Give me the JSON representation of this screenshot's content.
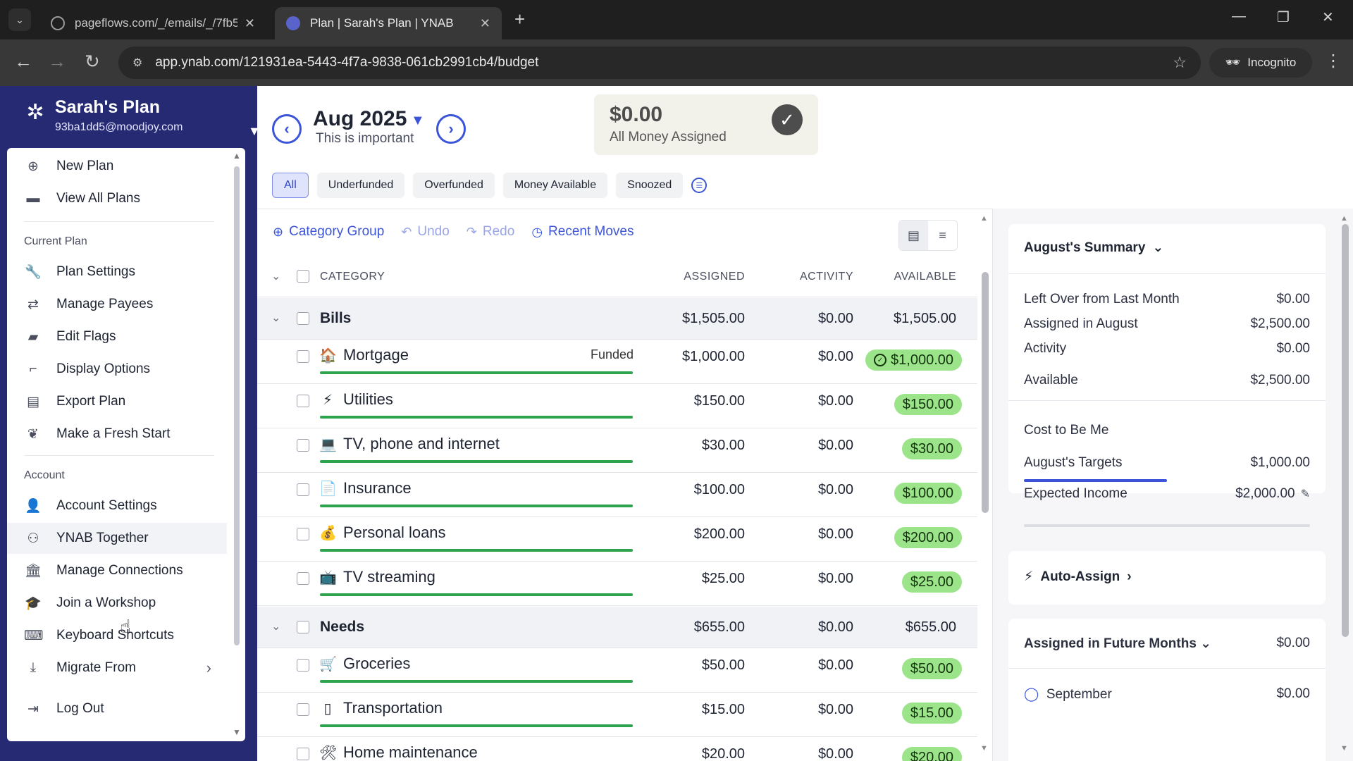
{
  "browser": {
    "tabs": [
      {
        "title": "pageflows.com/_/emails/_/7fb5",
        "active": false
      },
      {
        "title": "Plan | Sarah's Plan | YNAB",
        "active": true
      }
    ],
    "url": "app.ynab.com/121931ea-5443-4f7a-9838-061cb2991cb4/budget",
    "incognito_label": "Incognito"
  },
  "sidebar": {
    "plan_name": "Sarah's Plan",
    "email": "93ba1dd5@moodjoy.com",
    "top_items": [
      {
        "label": "New Plan",
        "icon": "plus-circle-icon"
      },
      {
        "label": "View All Plans",
        "icon": "folder-icon"
      }
    ],
    "current_plan_heading": "Current Plan",
    "current_plan_items": [
      {
        "label": "Plan Settings",
        "icon": "wrench-icon"
      },
      {
        "label": "Manage Payees",
        "icon": "payees-icon"
      },
      {
        "label": "Edit Flags",
        "icon": "flag-icon"
      },
      {
        "label": "Display Options",
        "icon": "display-icon"
      },
      {
        "label": "Export Plan",
        "icon": "export-icon"
      },
      {
        "label": "Make a Fresh Start",
        "icon": "leaf-icon"
      }
    ],
    "account_heading": "Account",
    "account_items": [
      {
        "label": "Account Settings",
        "icon": "user-icon"
      },
      {
        "label": "YNAB Together",
        "icon": "people-icon"
      },
      {
        "label": "Manage Connections",
        "icon": "bank-icon"
      },
      {
        "label": "Join a Workshop",
        "icon": "graduation-icon"
      },
      {
        "label": "Keyboard Shortcuts",
        "icon": "keyboard-icon"
      },
      {
        "label": "Migrate From",
        "icon": "download-icon"
      },
      {
        "label": "Log Out",
        "icon": "logout-icon"
      }
    ]
  },
  "header": {
    "month": "Aug 2025",
    "month_note": "This is important",
    "ready_amount": "$0.00",
    "ready_label": "All Money Assigned"
  },
  "filters": [
    "All",
    "Underfunded",
    "Overfunded",
    "Money Available",
    "Snoozed"
  ],
  "toolbar": {
    "category_group": "Category Group",
    "undo": "Undo",
    "redo": "Redo",
    "recent_moves": "Recent Moves"
  },
  "table": {
    "columns": {
      "category": "CATEGORY",
      "assigned": "ASSIGNED",
      "activity": "ACTIVITY",
      "available": "AVAILABLE"
    },
    "rows": [
      {
        "type": "group",
        "name": "Bills",
        "assigned": "$1,505.00",
        "activity": "$0.00",
        "available": "$1,505.00"
      },
      {
        "type": "cat",
        "name": "Mortgage",
        "emoji": "🏠",
        "status": "Funded",
        "assigned": "$1,000.00",
        "activity": "$0.00",
        "available": "$1,000.00",
        "progress": 1.0,
        "check": true
      },
      {
        "type": "cat",
        "name": "Utilities",
        "emoji": "⚡",
        "assigned": "$150.00",
        "activity": "$0.00",
        "available": "$150.00",
        "progress": 1.0
      },
      {
        "type": "cat",
        "name": "TV, phone and internet",
        "emoji": "💻",
        "assigned": "$30.00",
        "activity": "$0.00",
        "available": "$30.00",
        "progress": 1.0
      },
      {
        "type": "cat",
        "name": "Insurance",
        "emoji": "📄",
        "assigned": "$100.00",
        "activity": "$0.00",
        "available": "$100.00",
        "progress": 1.0
      },
      {
        "type": "cat",
        "name": "Personal loans",
        "emoji": "💰",
        "assigned": "$200.00",
        "activity": "$0.00",
        "available": "$200.00",
        "progress": 1.0
      },
      {
        "type": "cat",
        "name": "TV streaming",
        "emoji": "📺",
        "assigned": "$25.00",
        "activity": "$0.00",
        "available": "$25.00",
        "progress": 1.0
      },
      {
        "type": "group",
        "name": "Needs",
        "assigned": "$655.00",
        "activity": "$0.00",
        "available": "$655.00"
      },
      {
        "type": "cat",
        "name": "Groceries",
        "emoji": "🛒",
        "assigned": "$50.00",
        "activity": "$0.00",
        "available": "$50.00",
        "progress": 1.0
      },
      {
        "type": "cat",
        "name": "Transportation",
        "emoji": "▯",
        "assigned": "$15.00",
        "activity": "$0.00",
        "available": "$15.00",
        "progress": 1.0
      },
      {
        "type": "cat",
        "name": "Home maintenance",
        "emoji": "🛠",
        "assigned": "$20.00",
        "activity": "$0.00",
        "available": "$20.00",
        "progress": 1.0
      }
    ]
  },
  "inspector": {
    "summary_title": "August's Summary",
    "summary_rows": [
      {
        "label": "Left Over from Last Month",
        "value": "$0.00"
      },
      {
        "label": "Assigned in August",
        "value": "$2,500.00"
      },
      {
        "label": "Activity",
        "value": "$0.00"
      },
      {
        "label": "Available",
        "value": "$2,500.00"
      }
    ],
    "cost_title": "Cost to Be Me",
    "targets_label": "August's Targets",
    "targets_value": "$1,000.00",
    "targets_progress": 0.5,
    "income_label": "Expected Income",
    "income_value": "$2,000.00",
    "auto_assign": "Auto-Assign",
    "future_title": "Assigned in Future Months",
    "future_value": "$0.00",
    "future_month": "September",
    "future_month_value": "$0.00"
  },
  "colors": {
    "sidebar_bg": "#262a73",
    "accent": "#3c55d8",
    "available_pill": "#9be48a",
    "progress_green": "#2fa44f"
  }
}
